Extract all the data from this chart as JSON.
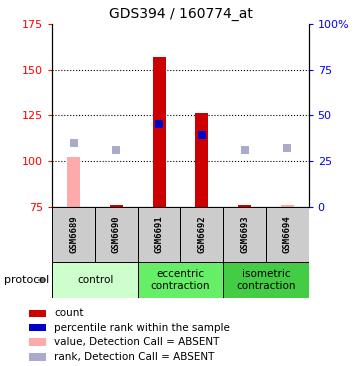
{
  "title": "GDS394 / 160774_at",
  "samples": [
    "GSM6689",
    "GSM6690",
    "GSM6691",
    "GSM6692",
    "GSM6693",
    "GSM6694"
  ],
  "groups": [
    {
      "label": "control",
      "samples": [
        0,
        1
      ],
      "color": "#ccffcc"
    },
    {
      "label": "eccentric\ncontraction",
      "samples": [
        2,
        3
      ],
      "color": "#66ee66"
    },
    {
      "label": "isometric\ncontraction",
      "samples": [
        4,
        5
      ],
      "color": "#44cc44"
    }
  ],
  "ylim_left": [
    75,
    175
  ],
  "ylim_right": [
    0,
    100
  ],
  "yticks_left": [
    75,
    100,
    125,
    150,
    175
  ],
  "yticks_right": [
    0,
    25,
    50,
    75,
    100
  ],
  "ytick_labels_right": [
    "0",
    "25",
    "50",
    "75",
    "100%"
  ],
  "bar_values": [
    102,
    76,
    157,
    126,
    76,
    76
  ],
  "bar_absent": [
    true,
    false,
    false,
    false,
    false,
    true
  ],
  "rank_values": [
    110,
    106,
    120,
    114,
    106,
    107
  ],
  "rank_absent": [
    true,
    true,
    false,
    false,
    true,
    true
  ],
  "blue_rank_values": [
    null,
    null,
    120,
    114,
    null,
    null
  ],
  "bar_color_present": "#cc0000",
  "bar_color_absent": "#ffaaaa",
  "rank_color_present": "#0000cc",
  "rank_color_absent": "#aaaacc",
  "bar_bottom": 75,
  "bar_width": 0.3,
  "rank_marker_size": 40,
  "sample_bg_color": "#cccccc",
  "legend_items": [
    {
      "color": "#cc0000",
      "label": "count"
    },
    {
      "color": "#0000cc",
      "label": "percentile rank within the sample"
    },
    {
      "color": "#ffaaaa",
      "label": "value, Detection Call = ABSENT"
    },
    {
      "color": "#aaaacc",
      "label": "rank, Detection Call = ABSENT"
    }
  ]
}
